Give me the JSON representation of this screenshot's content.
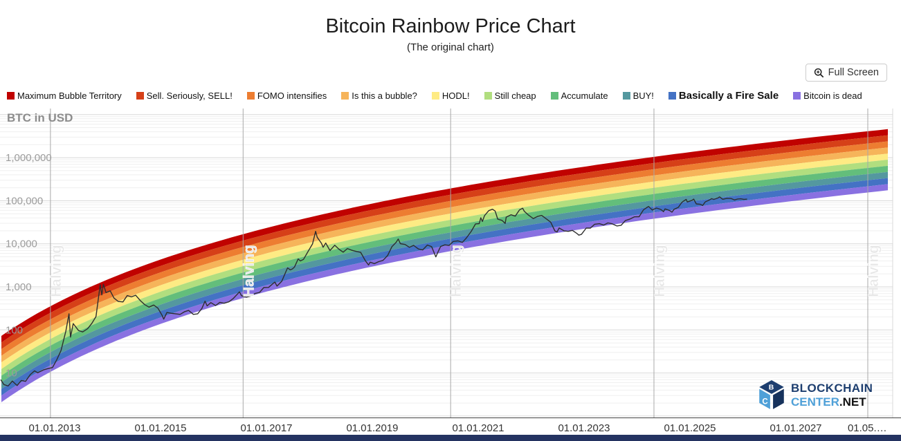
{
  "header": {
    "title": "Bitcoin Rainbow Price Chart",
    "subtitle": "(The original chart)",
    "fullscreen_label": "Full Screen"
  },
  "footer": {
    "brand_line1": "BLOCKCHAIN",
    "brand_line2": "CENTER",
    "brand_suffix": ".NET"
  },
  "chart_data": {
    "type": "line",
    "title": "Bitcoin Rainbow Price Chart",
    "subtitle": "(The original chart)",
    "ylabel": "BTC in USD",
    "y_scale": "log",
    "grid": "on",
    "legend_position": "top",
    "y_ticks": [
      {
        "label": "10",
        "value": 10
      },
      {
        "label": "100",
        "value": 100
      },
      {
        "label": "1,000",
        "value": 1000
      },
      {
        "label": "10,000",
        "value": 10000
      },
      {
        "label": "100,000",
        "value": 100000
      },
      {
        "label": "1,000,000",
        "value": 1000000
      }
    ],
    "x_ticks": [
      {
        "label": "01.01.2013",
        "year": 2013
      },
      {
        "label": "01.01.2015",
        "year": 2015
      },
      {
        "label": "01.01.2017",
        "year": 2017
      },
      {
        "label": "01.01.2019",
        "year": 2019
      },
      {
        "label": "01.01.2021",
        "year": 2021
      },
      {
        "label": "01.01.2023",
        "year": 2023
      },
      {
        "label": "01.01.2025",
        "year": 2025
      },
      {
        "label": "01.01.2027",
        "year": 2027
      },
      {
        "label": "01.05.…",
        "year": 2028.35
      }
    ],
    "bands": [
      {
        "label": "Maximum Bubble Territory",
        "color": "#c00200",
        "bold": false
      },
      {
        "label": "Sell. Seriously, SELL!",
        "color": "#d64018",
        "bold": false
      },
      {
        "label": "FOMO intensifies",
        "color": "#ed7d31",
        "bold": false
      },
      {
        "label": "Is this a bubble?",
        "color": "#f6b45a",
        "bold": false
      },
      {
        "label": "HODL!",
        "color": "#feeb84",
        "bold": false
      },
      {
        "label": "Still cheap",
        "color": "#b1de7f",
        "bold": false
      },
      {
        "label": "Accumulate",
        "color": "#63be7b",
        "bold": false
      },
      {
        "label": "BUY!",
        "color": "#54989f",
        "bold": false
      },
      {
        "label": "Basically a Fire Sale",
        "color": "#4472c4",
        "bold": true
      },
      {
        "label": "Bitcoin is dead",
        "color": "#8971e1",
        "bold": false
      }
    ],
    "band_curve": {
      "origin_year": 2009.02,
      "top": {
        "ln_coef": 2.538,
        "intercept": -15.88
      },
      "bottom": {
        "ln_coef": 2.601,
        "intercept": -17.86
      }
    },
    "halvings": [
      {
        "label": "Halving",
        "year": 2012.92
      },
      {
        "label": "Halving",
        "year": 2016.56
      },
      {
        "label": "Halving",
        "year": 2020.48
      },
      {
        "label": "Halving",
        "year": 2024.32
      },
      {
        "label": "Halving",
        "year": 2028.36
      }
    ],
    "price_series": [
      [
        2011.98,
        7
      ],
      [
        2012.04,
        5.4
      ],
      [
        2012.12,
        5.0
      ],
      [
        2012.2,
        6.5
      ],
      [
        2012.29,
        5.1
      ],
      [
        2012.37,
        6.7
      ],
      [
        2012.45,
        6.4
      ],
      [
        2012.54,
        9.2
      ],
      [
        2012.62,
        11.2
      ],
      [
        2012.68,
        10.1
      ],
      [
        2012.79,
        11.8
      ],
      [
        2012.87,
        12.6
      ],
      [
        2012.96,
        13.4
      ],
      [
        2013.04,
        20.4
      ],
      [
        2013.12,
        33.4
      ],
      [
        2013.21,
        93
      ],
      [
        2013.27,
        237
      ],
      [
        2013.3,
        68
      ],
      [
        2013.35,
        140
      ],
      [
        2013.45,
        97
      ],
      [
        2013.53,
        90
      ],
      [
        2013.62,
        106
      ],
      [
        2013.7,
        141
      ],
      [
        2013.78,
        204
      ],
      [
        2013.86,
        1120
      ],
      [
        2013.89,
        650
      ],
      [
        2013.92,
        1150
      ],
      [
        2013.97,
        732
      ],
      [
        2014.05,
        806
      ],
      [
        2014.12,
        550
      ],
      [
        2014.2,
        458
      ],
      [
        2014.29,
        446
      ],
      [
        2014.37,
        627
      ],
      [
        2014.45,
        585
      ],
      [
        2014.53,
        640
      ],
      [
        2014.62,
        478
      ],
      [
        2014.7,
        387
      ],
      [
        2014.78,
        338
      ],
      [
        2014.87,
        378
      ],
      [
        2014.95,
        320
      ],
      [
        2015.03,
        217
      ],
      [
        2015.06,
        178
      ],
      [
        2015.12,
        254
      ],
      [
        2015.2,
        244
      ],
      [
        2015.29,
        236
      ],
      [
        2015.37,
        230
      ],
      [
        2015.45,
        263
      ],
      [
        2015.53,
        284
      ],
      [
        2015.62,
        230
      ],
      [
        2015.7,
        236
      ],
      [
        2015.78,
        314
      ],
      [
        2015.84,
        465
      ],
      [
        2015.88,
        362
      ],
      [
        2015.95,
        430
      ],
      [
        2016.04,
        369
      ],
      [
        2016.12,
        437
      ],
      [
        2016.2,
        416
      ],
      [
        2016.29,
        448
      ],
      [
        2016.37,
        531
      ],
      [
        2016.45,
        673
      ],
      [
        2016.49,
        767
      ],
      [
        2016.53,
        624
      ],
      [
        2016.62,
        575
      ],
      [
        2016.7,
        610
      ],
      [
        2016.78,
        700
      ],
      [
        2016.87,
        745
      ],
      [
        2016.95,
        963
      ],
      [
        2017.04,
        970
      ],
      [
        2017.12,
        1180
      ],
      [
        2017.16,
        1290
      ],
      [
        2017.2,
        1040
      ],
      [
        2017.29,
        1347
      ],
      [
        2017.37,
        2286
      ],
      [
        2017.4,
        2760
      ],
      [
        2017.45,
        2480
      ],
      [
        2017.49,
        2600
      ],
      [
        2017.53,
        2875
      ],
      [
        2017.6,
        4450
      ],
      [
        2017.64,
        4000
      ],
      [
        2017.7,
        4360
      ],
      [
        2017.78,
        6440
      ],
      [
        2017.87,
        9916
      ],
      [
        2017.93,
        19430
      ],
      [
        2017.96,
        14156
      ],
      [
        2018.04,
        10221
      ],
      [
        2018.07,
        8300
      ],
      [
        2018.12,
        10397
      ],
      [
        2018.2,
        6973
      ],
      [
        2018.29,
        9240
      ],
      [
        2018.37,
        7494
      ],
      [
        2018.45,
        6404
      ],
      [
        2018.53,
        7735
      ],
      [
        2018.62,
        7033
      ],
      [
        2018.7,
        6625
      ],
      [
        2018.78,
        6317
      ],
      [
        2018.87,
        4017
      ],
      [
        2018.93,
        3230
      ],
      [
        2018.96,
        3742
      ],
      [
        2019.04,
        3457
      ],
      [
        2019.12,
        3854
      ],
      [
        2019.2,
        4105
      ],
      [
        2019.29,
        5350
      ],
      [
        2019.37,
        8574
      ],
      [
        2019.45,
        10818
      ],
      [
        2019.49,
        12900
      ],
      [
        2019.53,
        10085
      ],
      [
        2019.62,
        9630
      ],
      [
        2019.7,
        8293
      ],
      [
        2019.78,
        9199
      ],
      [
        2019.87,
        7569
      ],
      [
        2019.95,
        7193
      ],
      [
        2020.04,
        9350
      ],
      [
        2020.12,
        8599
      ],
      [
        2020.2,
        4970
      ],
      [
        2020.24,
        6438
      ],
      [
        2020.29,
        8658
      ],
      [
        2020.37,
        9461
      ],
      [
        2020.45,
        9137
      ],
      [
        2020.53,
        11323
      ],
      [
        2020.62,
        11680
      ],
      [
        2020.7,
        10784
      ],
      [
        2020.78,
        13781
      ],
      [
        2020.87,
        19625
      ],
      [
        2020.95,
        28990
      ],
      [
        2021.02,
        29400
      ],
      [
        2021.05,
        40200
      ],
      [
        2021.08,
        33000
      ],
      [
        2021.12,
        45137
      ],
      [
        2021.2,
        58918
      ],
      [
        2021.27,
        63500
      ],
      [
        2021.32,
        57750
      ],
      [
        2021.37,
        37332
      ],
      [
        2021.45,
        35040
      ],
      [
        2021.51,
        29800
      ],
      [
        2021.53,
        41626
      ],
      [
        2021.62,
        47166
      ],
      [
        2021.7,
        43790
      ],
      [
        2021.78,
        61318
      ],
      [
        2021.84,
        66900
      ],
      [
        2021.87,
        57005
      ],
      [
        2021.95,
        46306
      ],
      [
        2022.04,
        38483
      ],
      [
        2022.12,
        43193
      ],
      [
        2022.2,
        45538
      ],
      [
        2022.29,
        37714
      ],
      [
        2022.37,
        31792
      ],
      [
        2022.45,
        19784
      ],
      [
        2022.49,
        18900
      ],
      [
        2022.53,
        23336
      ],
      [
        2022.62,
        20049
      ],
      [
        2022.7,
        19431
      ],
      [
        2022.78,
        20495
      ],
      [
        2022.87,
        17168
      ],
      [
        2022.9,
        15900
      ],
      [
        2022.95,
        16547
      ],
      [
        2023.04,
        23139
      ],
      [
        2023.12,
        23147
      ],
      [
        2023.2,
        28478
      ],
      [
        2023.29,
        29268
      ],
      [
        2023.37,
        27219
      ],
      [
        2023.45,
        30477
      ],
      [
        2023.53,
        29230
      ],
      [
        2023.62,
        25931
      ],
      [
        2023.7,
        26967
      ],
      [
        2023.78,
        34667
      ],
      [
        2023.87,
        37718
      ],
      [
        2023.95,
        42265
      ],
      [
        2024.04,
        42580
      ],
      [
        2024.12,
        61198
      ],
      [
        2024.2,
        71333
      ],
      [
        2024.22,
        73700
      ],
      [
        2024.29,
        60636
      ],
      [
        2024.32,
        64000
      ],
      [
        2024.37,
        67491
      ],
      [
        2024.45,
        62678
      ],
      [
        2024.5,
        55800
      ],
      [
        2024.53,
        64619
      ],
      [
        2024.62,
        58969
      ],
      [
        2024.66,
        54200
      ],
      [
        2024.7,
        63329
      ],
      [
        2024.78,
        70215
      ],
      [
        2024.84,
        89500
      ],
      [
        2024.87,
        96449
      ],
      [
        2024.93,
        107100
      ],
      [
        2024.95,
        93429
      ],
      [
        2025.04,
        102405
      ],
      [
        2025.07,
        109100
      ],
      [
        2025.12,
        84373
      ],
      [
        2025.2,
        82548
      ],
      [
        2025.24,
        77800
      ],
      [
        2025.29,
        94207
      ],
      [
        2025.37,
        104598
      ],
      [
        2025.41,
        111900
      ],
      [
        2025.45,
        107135
      ],
      [
        2025.53,
        115758
      ],
      [
        2025.56,
        122800
      ],
      [
        2025.62,
        108236
      ],
      [
        2025.7,
        114000
      ],
      [
        2025.78,
        112500
      ],
      [
        2025.84,
        104300
      ],
      [
        2025.9,
        109500
      ],
      [
        2025.96,
        111000
      ],
      [
        2026.02,
        107500
      ],
      [
        2026.08,
        109000
      ]
    ]
  }
}
